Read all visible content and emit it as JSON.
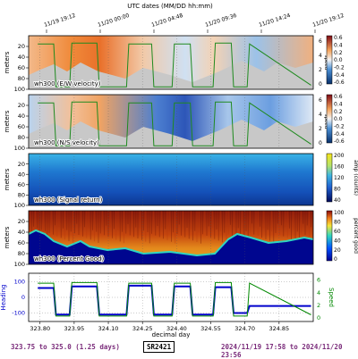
{
  "chart_data": {
    "title": "UTC dates (MM/DD hh:mm)",
    "top_ticks": [
      "11/19 19:12",
      "11/20 00:00",
      "11/20 04:48",
      "11/20 09:36",
      "11/20 14:24",
      "11/20 19:12"
    ],
    "xlabel": "decimal day",
    "x_ticks": [
      "323.80",
      "323.95",
      "324.10",
      "324.25",
      "324.40",
      "324.55",
      "324.70",
      "324.85"
    ],
    "xlim": [
      323.75,
      325.0
    ],
    "panels": [
      {
        "type": "heatmap",
        "label": "wh300 (E/W velocity)",
        "ylabel": "meters",
        "yticks": [
          "20",
          "40",
          "60",
          "80",
          "100"
        ],
        "ylim": [
          100,
          0
        ],
        "right_axis": {
          "label": "speed",
          "ticks": [
            "6",
            "4",
            "2",
            "0"
          ]
        },
        "colorbar": {
          "ticks": [
            "0.6",
            "0.4",
            "0.2",
            "0.0",
            "-0.2",
            "-0.4",
            "-0.6"
          ],
          "range": [
            -0.6,
            0.6
          ]
        }
      },
      {
        "type": "heatmap",
        "label": "wh300 (N/S velocity)",
        "ylabel": "meters",
        "yticks": [
          "20",
          "40",
          "60",
          "80",
          "100"
        ],
        "ylim": [
          100,
          0
        ],
        "right_axis": {
          "label": "speed",
          "ticks": [
            "6",
            "4",
            "2",
            "0"
          ]
        },
        "colorbar": {
          "ticks": [
            "0.6",
            "0.4",
            "0.2",
            "0.0",
            "-0.2",
            "-0.4",
            "-0.6"
          ],
          "range": [
            -0.6,
            0.6
          ]
        }
      },
      {
        "type": "heatmap",
        "label": "wh300 (Signal return)",
        "ylabel": "meters",
        "yticks": [
          "20",
          "40",
          "60",
          "80",
          "100"
        ],
        "ylim": [
          100,
          0
        ],
        "colorbar": {
          "label": "amp (counts)",
          "ticks": [
            "200",
            "160",
            "120",
            "80",
            "40"
          ],
          "range": [
            20,
            200
          ]
        }
      },
      {
        "type": "heatmap",
        "label": "wh300 (Percent Good)",
        "ylabel": "meters",
        "yticks": [
          "20",
          "40",
          "60",
          "80",
          "100"
        ],
        "ylim": [
          100,
          0
        ],
        "colorbar": {
          "label": "percent good",
          "ticks": [
            "100",
            "80",
            "60",
            "40",
            "20",
            "0"
          ],
          "range": [
            0,
            100
          ]
        }
      },
      {
        "type": "line",
        "ylabel_left": "Heading",
        "yticks_left": [
          "100",
          "0",
          "-100"
        ],
        "ylabel_right": "Speed",
        "yticks_right": [
          "6",
          "4",
          "2",
          "0"
        ],
        "series": [
          {
            "color": "#0000cc",
            "x": [
              323.79,
              323.86,
              323.87,
              323.93,
              323.94,
              324.05,
              324.06,
              324.18,
              324.19,
              324.29,
              324.3,
              324.38,
              324.39,
              324.46,
              324.47,
              324.56,
              324.57,
              324.64,
              324.65,
              324.71,
              324.72,
              324.99
            ],
            "y": [
              60,
              60,
              -110,
              -110,
              70,
              70,
              -110,
              -110,
              75,
              75,
              -110,
              -110,
              70,
              70,
              -110,
              -110,
              65,
              65,
              -100,
              -100,
              -55,
              -55
            ]
          },
          {
            "color": "#008800",
            "x": [
              323.79,
              323.86,
              323.87,
              323.93,
              323.94,
              324.05,
              324.06,
              324.18,
              324.19,
              324.29,
              324.3,
              324.38,
              324.39,
              324.46,
              324.47,
              324.56,
              324.57,
              324.64,
              324.65,
              324.71,
              324.72,
              324.99
            ],
            "y": [
              5.5,
              5.5,
              0.3,
              0.3,
              5.6,
              5.6,
              0.3,
              0.3,
              5.5,
              5.5,
              0.3,
              0.3,
              5.5,
              5.5,
              0.3,
              0.3,
              5.6,
              5.6,
              0.3,
              0.3,
              5.5,
              0.5
            ]
          }
        ]
      }
    ],
    "grid": true,
    "legend": "none"
  },
  "footer": {
    "range": "323.75 to 325.0 (1.25 days)",
    "ship": "SR2421",
    "dates": "2024/11/19 17:58 to 2024/11/20 23:56"
  }
}
